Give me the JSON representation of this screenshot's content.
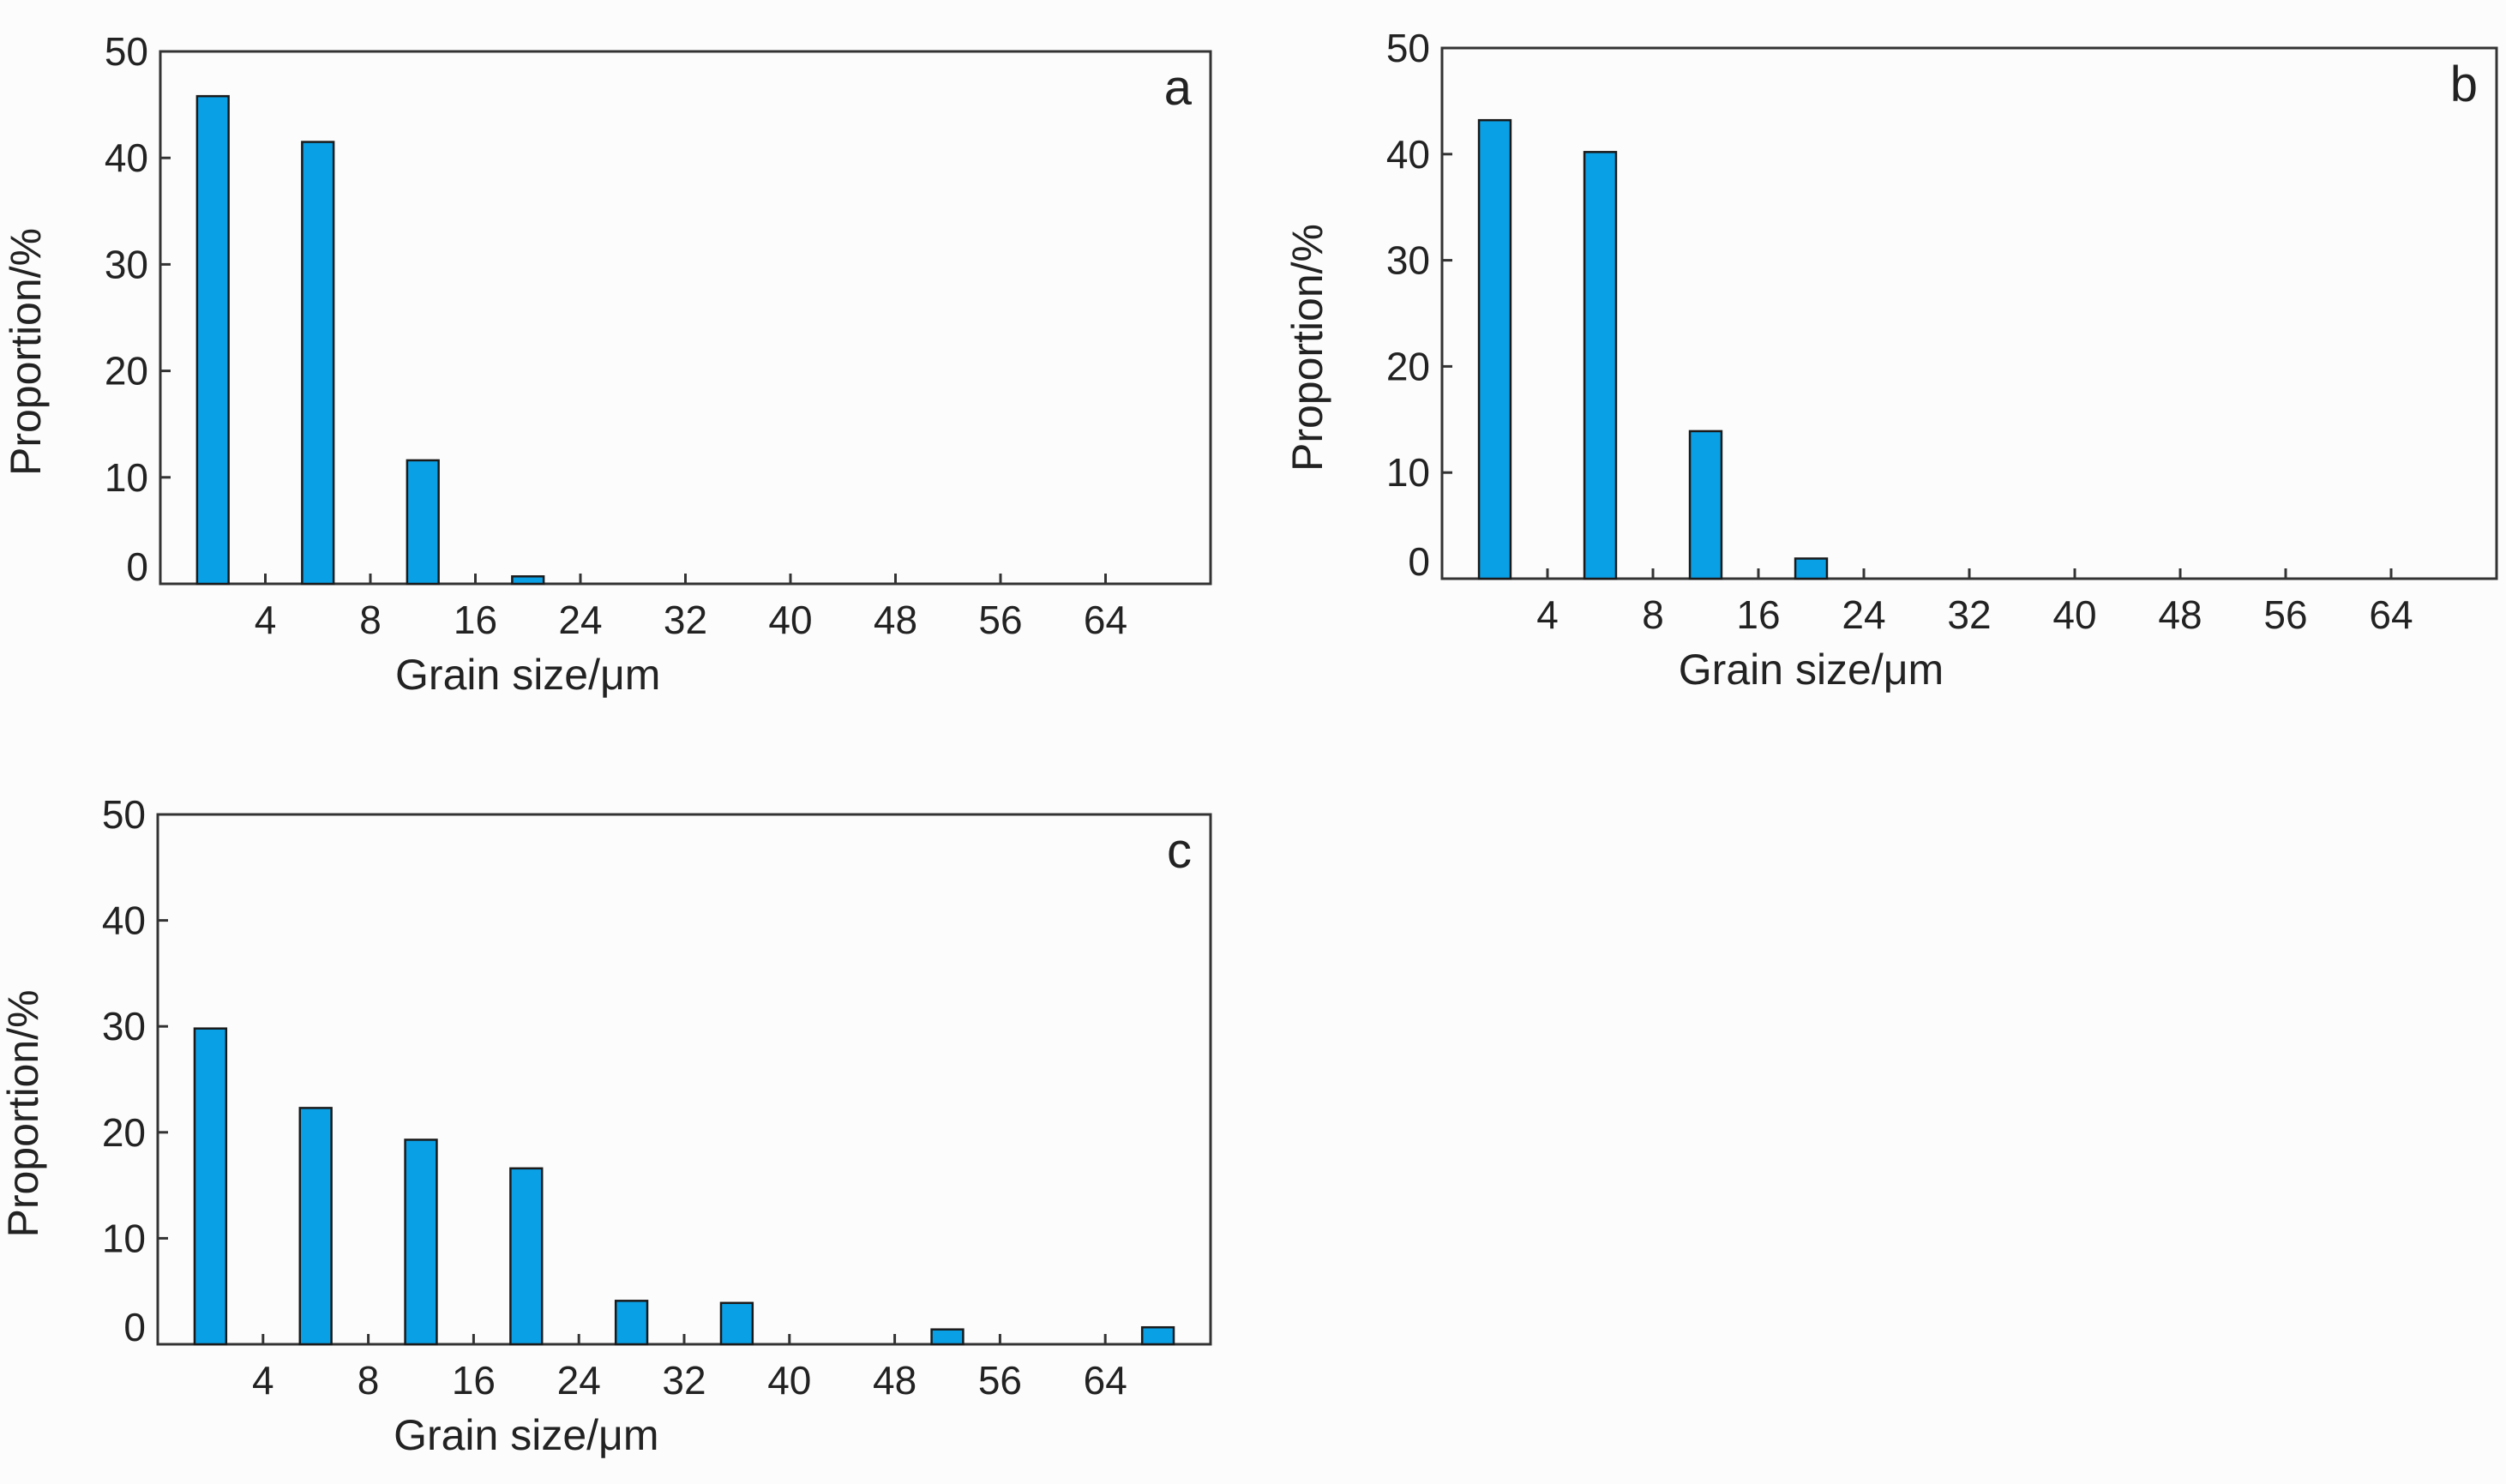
{
  "colors": {
    "bar_fill": "#0aa0e6",
    "axis": "#333333"
  },
  "chart_data": [
    {
      "type": "bar",
      "panel_label": "a",
      "xlabel": "Grain size/μm",
      "ylabel": "Proportion/%",
      "ylim": [
        0,
        50
      ],
      "yticks": [
        "0",
        "10",
        "20",
        "30",
        "40",
        "50"
      ],
      "xticks": [
        "4",
        "8",
        "16",
        "24",
        "32",
        "40",
        "48",
        "56",
        "64"
      ],
      "categories": [
        "<4",
        "4-8",
        "8-16",
        "16-24",
        "24-32",
        "32-40",
        "40-48",
        "48-56",
        "56-64",
        ">64"
      ],
      "values": [
        45.8,
        41.5,
        11.6,
        0.7,
        0,
        0,
        0,
        0,
        0,
        0
      ]
    },
    {
      "type": "bar",
      "panel_label": "b",
      "xlabel": "Grain size/μm",
      "ylabel": "Proportion/%",
      "ylim": [
        0,
        50
      ],
      "yticks": [
        "0",
        "10",
        "20",
        "30",
        "40",
        "50"
      ],
      "xticks": [
        "4",
        "8",
        "16",
        "24",
        "32",
        "40",
        "48",
        "56",
        "64"
      ],
      "categories": [
        "<4",
        "4-8",
        "8-16",
        "16-24",
        "24-32",
        "32-40",
        "40-48",
        "48-56",
        "56-64",
        ">64"
      ],
      "values": [
        43.2,
        40.2,
        13.9,
        1.9,
        0,
        0,
        0,
        0,
        0,
        0
      ]
    },
    {
      "type": "bar",
      "panel_label": "c",
      "xlabel": "Grain size/μm",
      "ylabel": "Proportion/%",
      "ylim": [
        0,
        50
      ],
      "yticks": [
        "0",
        "10",
        "20",
        "30",
        "40",
        "50"
      ],
      "xticks": [
        "4",
        "8",
        "16",
        "24",
        "32",
        "40",
        "48",
        "56",
        "64"
      ],
      "categories": [
        "<4",
        "4-8",
        "8-16",
        "16-24",
        "24-32",
        "32-40",
        "40-48",
        "48-56",
        "56-64",
        ">64"
      ],
      "values": [
        29.8,
        22.3,
        19.3,
        16.6,
        4.1,
        3.9,
        0,
        1.4,
        0,
        1.6
      ]
    }
  ]
}
